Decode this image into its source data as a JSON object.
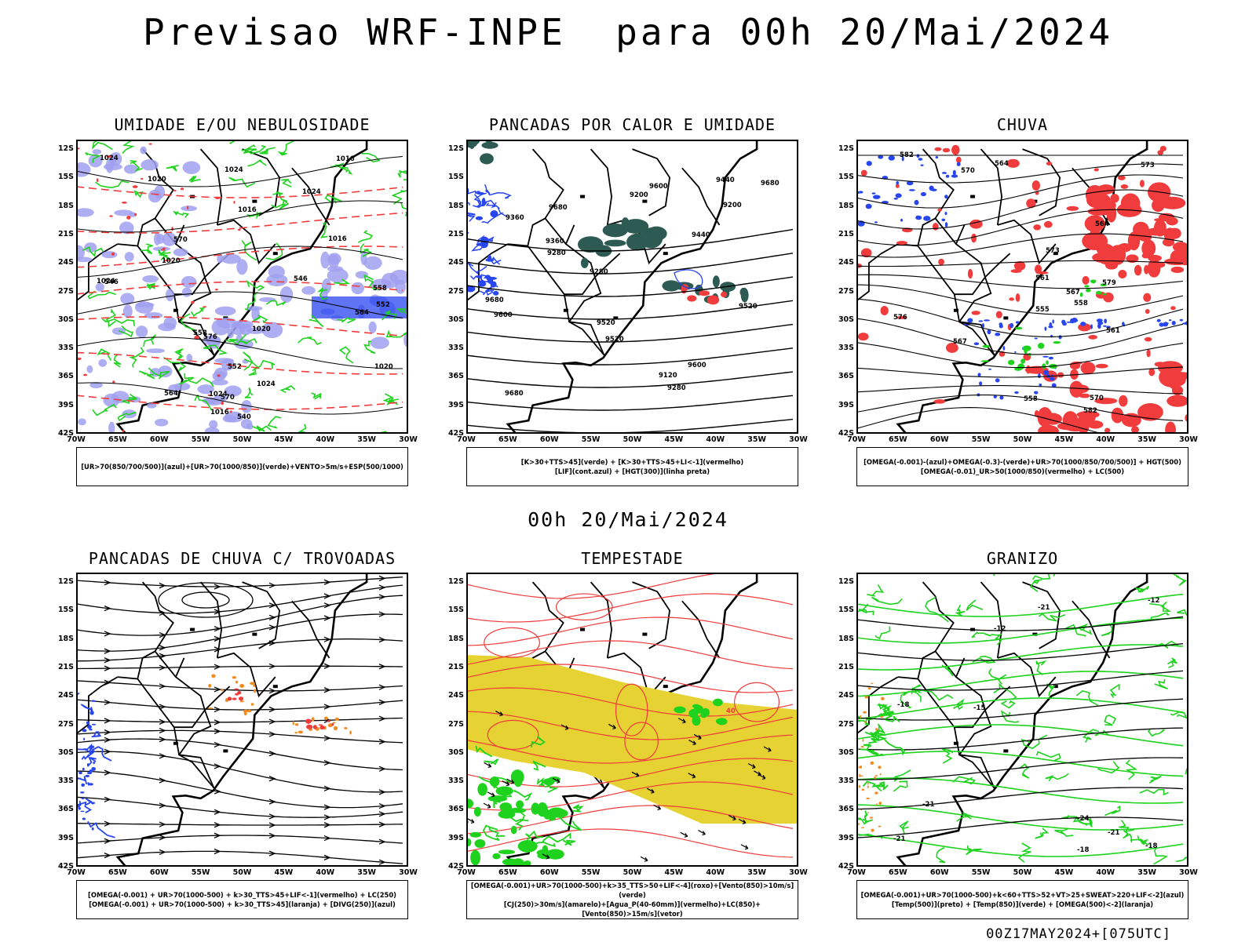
{
  "title": "Previsao WRF-INPE  para 00h 20/Mai/2024",
  "subtitle": "00h 20/Mai/2024",
  "footer": "00Z17MAY2024+[075UTC]",
  "axes": {
    "lat_ticks": [
      "12S",
      "15S",
      "18S",
      "21S",
      "24S",
      "27S",
      "30S",
      "33S",
      "36S",
      "39S",
      "42S"
    ],
    "lon_ticks": [
      "70W",
      "65W",
      "60W",
      "55W",
      "50W",
      "45W",
      "40W",
      "35W",
      "30W"
    ]
  },
  "colors": {
    "red": "#f03c3c",
    "green": "#1ed21e",
    "blue": "#2846f0",
    "lavender": "#a0a0f0",
    "dark_teal": "#2d5a52",
    "yellow": "#e6d232",
    "orange": "#f08c1e"
  },
  "panels": [
    {
      "id": "umidade",
      "title": "UMIDADE E/OU NEBULOSIDADE",
      "legend": [
        "[UR>70(850/700/500)](azul)+[UR>70(1000/850)](verde)+VENTO>5m/s+ESP(500/1000)"
      ],
      "labels": [
        "1016",
        "1016",
        "1020",
        "1024",
        "1020",
        "1024",
        "1016",
        "1016",
        "1024",
        "1020",
        "1020",
        "1024",
        "1024",
        "1024",
        "570",
        "576",
        "564",
        "558",
        "552",
        "546",
        "540",
        "552",
        "546",
        "558",
        "570",
        "564"
      ]
    },
    {
      "id": "pancadas-calor",
      "title": "PANCADAS POR CALOR E UMIDADE",
      "legend": [
        "[K>30+TTS>45](verde) + [K>30+TTS>45+LI<-1](vermelho)",
        "[LIF](cont.azul) + [HGT(300)](linha preta)"
      ],
      "labels": [
        "9680",
        "9600",
        "9520",
        "9680",
        "9680",
        "9680",
        "9600",
        "9520",
        "9440",
        "9360",
        "9280",
        "9600",
        "9520",
        "9440",
        "9360",
        "9280",
        "9200",
        "9120",
        "9200",
        "9280"
      ]
    },
    {
      "id": "chuva",
      "title": "CHUVA",
      "legend": [
        "[OMEGA(-0.001)-(azul)+OMEGA(-0.3)-(verde)+UR>70(1000/850/700/500)] + HGT(500)",
        "[OMEGA(-0.01)_UR>50(1000/850)(vermelho) + LC(500)"
      ],
      "labels": [
        "582",
        "582",
        "579",
        "576",
        "573",
        "570",
        "567",
        "564",
        "561",
        "558",
        "573",
        "570",
        "567",
        "564",
        "561",
        "558",
        "555"
      ]
    },
    {
      "id": "trovoadas",
      "title": "PANCADAS DE CHUVA C/ TROVOADAS",
      "legend": [
        "[OMEGA(-0.001) + UR>70(1000-500) + k>30_TTS>45+LIF<-1](vermelho) + LC(250)",
        "[OMEGA(-0.001) + UR>70(1000-500) + k>30_TTS>45](laranja) + [DIVG(250)](azul)"
      ],
      "labels": []
    },
    {
      "id": "tempestade",
      "title": "TEMPESTADE",
      "legend": [
        "[OMEGA(-0.001)+UR>70(1000-500)+k>35_TTS>50+LIF<-4](roxo)+[Vento(850)>10m/s](verde)",
        "[CJ(250)>30m/s](amarelo)+[Agua_P(40-60mm)](vermelho)+LC(850)+[Vento(850)>15m/s](vetor)"
      ],
      "labels": [
        "40"
      ]
    },
    {
      "id": "granizo",
      "title": "GRANIZO",
      "legend": [
        "[OMEGA(-0.001)+UR>70(1000-500)+k<60+TTS>52+VT>25+SWEAT>220+LIF<-2](azul)",
        "[Temp(500)](preto) + [Temp(850)](verde) + [OMEGA(500)<-2](laranja)"
      ],
      "labels": [
        "-12",
        "-12",
        "-15",
        "-18",
        "-18",
        "-21",
        "-21",
        "-24",
        "-21",
        "-18",
        "-21"
      ]
    }
  ]
}
